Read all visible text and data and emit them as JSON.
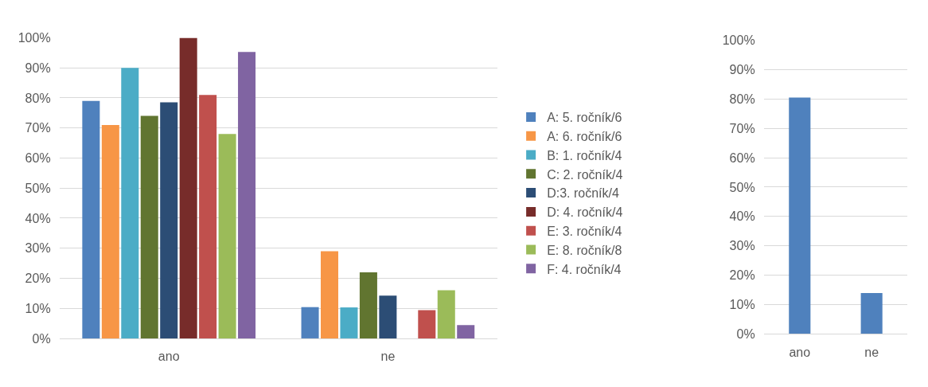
{
  "chart_data": [
    {
      "type": "bar",
      "categories": [
        "ano",
        "ne"
      ],
      "series": [
        {
          "name": "A: 5. ročník/6",
          "color": "#4f81bd",
          "values": [
            79,
            10.4
          ]
        },
        {
          "name": "A: 6. ročník/6",
          "color": "#f79646",
          "values": [
            71,
            29
          ]
        },
        {
          "name": "B: 1. ročník/4",
          "color": "#4bacc6",
          "values": [
            90,
            10.3
          ]
        },
        {
          "name": "C: 2. ročník/4",
          "color": "#617530",
          "values": [
            74,
            22
          ]
        },
        {
          "name": "D:3. ročník/4",
          "color": "#2c4d75",
          "values": [
            78.5,
            14.2
          ]
        },
        {
          "name": "D: 4. ročník/4",
          "color": "#772c2a",
          "values": [
            100,
            0
          ]
        },
        {
          "name": "E: 3. ročník/4",
          "color": "#c0504d",
          "values": [
            81,
            9.4
          ]
        },
        {
          "name": "E: 8. ročník/8",
          "color": "#9bbb59",
          "values": [
            68,
            16
          ]
        },
        {
          "name": "F: 4. ročník/4",
          "color": "#8064a2",
          "values": [
            95.3,
            4.4
          ]
        }
      ],
      "ylim": [
        0,
        100
      ],
      "yticks": [
        {
          "value": 0,
          "label": "0%"
        },
        {
          "value": 10,
          "label": "10%"
        },
        {
          "value": 20,
          "label": "20%"
        },
        {
          "value": 30,
          "label": "30%"
        },
        {
          "value": 40,
          "label": "40%"
        },
        {
          "value": 50,
          "label": "50%"
        },
        {
          "value": 60,
          "label": "60%"
        },
        {
          "value": 70,
          "label": "70%"
        },
        {
          "value": 80,
          "label": "80%"
        },
        {
          "value": 90,
          "label": "90%"
        },
        {
          "value": 100,
          "label": "100%"
        }
      ],
      "grid": "y",
      "legend": "right"
    },
    {
      "type": "bar",
      "categories": [
        "ano",
        "ne"
      ],
      "series": [
        {
          "color": "#4f81bd",
          "values": [
            80.5,
            13.9
          ]
        }
      ],
      "ylim": [
        0,
        100
      ],
      "yticks": [
        {
          "value": 0,
          "label": "0%"
        },
        {
          "value": 10,
          "label": "10%"
        },
        {
          "value": 20,
          "label": "20%"
        },
        {
          "value": 30,
          "label": "30%"
        },
        {
          "value": 40,
          "label": "40%"
        },
        {
          "value": 50,
          "label": "50%"
        },
        {
          "value": 60,
          "label": "60%"
        },
        {
          "value": 70,
          "label": "70%"
        },
        {
          "value": 80,
          "label": "80%"
        },
        {
          "value": 90,
          "label": "90%"
        },
        {
          "value": 100,
          "label": "100%"
        }
      ],
      "grid": "y"
    }
  ]
}
